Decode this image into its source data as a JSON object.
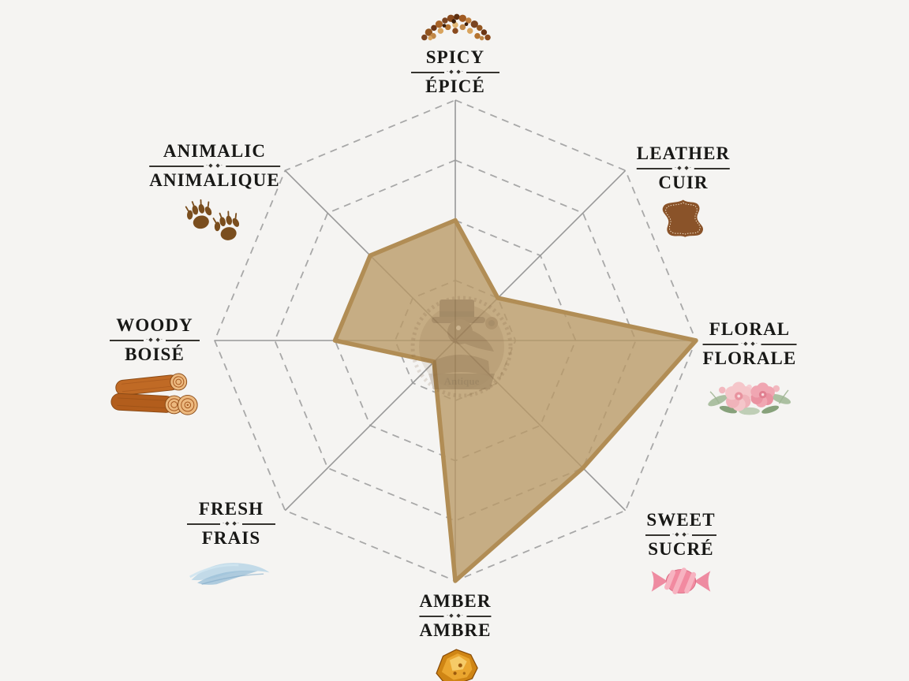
{
  "chart_data": {
    "type": "radar",
    "title": "",
    "scale_max": 4,
    "ring_levels": [
      1,
      2,
      3,
      4
    ],
    "grid": "dashed-octagon-rings",
    "legend": "none",
    "categories": [
      {
        "label_en": "SPICY",
        "label_fr": "ÉPICÉ",
        "value": 2,
        "icon": "spices-icon"
      },
      {
        "label_en": "LEATHER",
        "label_fr": "CUIR",
        "value": 1,
        "icon": "leather-hide-icon"
      },
      {
        "label_en": "FLORAL",
        "label_fr": "FLORALE",
        "value": 4,
        "icon": "flowers-icon"
      },
      {
        "label_en": "SWEET",
        "label_fr": "SUCRÉ",
        "value": 3,
        "icon": "candy-icon"
      },
      {
        "label_en": "AMBER",
        "label_fr": "AMBRE",
        "value": 4,
        "icon": "amber-stone-icon"
      },
      {
        "label_en": "FRESH",
        "label_fr": "FRAIS",
        "value": 0.5,
        "icon": "breeze-icon"
      },
      {
        "label_en": "WOODY",
        "label_fr": "BOISÉ",
        "value": 2,
        "icon": "logs-icon"
      },
      {
        "label_en": "ANIMALIC",
        "label_fr": "ANIMALIQUE",
        "value": 2,
        "icon": "paw-prints-icon"
      }
    ],
    "series": [
      {
        "name": "fragrance-profile",
        "values": [
          2,
          1,
          4,
          3,
          4,
          0.5,
          2,
          2
        ]
      }
    ],
    "colors": {
      "fill": "#b99865",
      "fill_opacity": 0.78,
      "stroke": "#b18d55",
      "grid": "#a8a8a8",
      "axis": "#989898",
      "background": "#f5f4f2",
      "label_text": "#181816"
    }
  },
  "labels": {
    "divider_ornament": "·◆ ◆·"
  },
  "watermark": {
    "name": "plague-doctor-logo",
    "text": "Antique"
  }
}
